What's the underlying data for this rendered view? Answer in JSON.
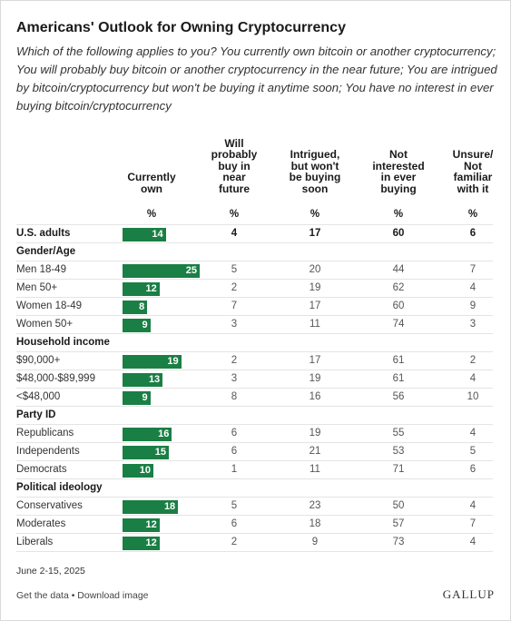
{
  "title": "Americans' Outlook for Owning Cryptocurrency",
  "subtitle": "Which of the following applies to you? You currently own bitcoin or another cryptocurrency; You will probably buy bitcoin or another cryptocurrency in the near future; You are intrigued by bitcoin/cryptocurrency but won't be buying it anytime soon; You have no interest in ever buying bitcoin/cryptocurrency",
  "columns": [
    {
      "lines": [
        "Currently",
        "own"
      ]
    },
    {
      "lines": [
        "Will",
        "probably",
        "buy in",
        "near",
        "future"
      ]
    },
    {
      "lines": [
        "Intrigued,",
        "but won't",
        "be buying",
        "soon"
      ]
    },
    {
      "lines": [
        "Not",
        "interested",
        "in ever",
        "buying"
      ]
    },
    {
      "lines": [
        "Unsure/",
        "Not",
        "familiar",
        "with it"
      ]
    }
  ],
  "pct_symbol": "%",
  "bar_color": "#1a7f45",
  "chart_data": {
    "type": "table",
    "columns": [
      "Currently own",
      "Will probably buy in near future",
      "Intrigued, but won't be buying soon",
      "Not interested in ever buying",
      "Unsure/ Not familiar with it"
    ],
    "unit": "%",
    "rows": [
      {
        "kind": "overall",
        "label": "U.S. adults",
        "values": [
          14,
          4,
          17,
          60,
          6
        ]
      },
      {
        "kind": "group",
        "label": "Gender/Age"
      },
      {
        "kind": "item",
        "label": "Men 18-49",
        "values": [
          25,
          5,
          20,
          44,
          7
        ]
      },
      {
        "kind": "item",
        "label": "Men 50+",
        "values": [
          12,
          2,
          19,
          62,
          4
        ]
      },
      {
        "kind": "item",
        "label": "Women 18-49",
        "values": [
          8,
          7,
          17,
          60,
          9
        ]
      },
      {
        "kind": "item",
        "label": "Women 50+",
        "values": [
          9,
          3,
          11,
          74,
          3
        ]
      },
      {
        "kind": "group",
        "label": "Household income"
      },
      {
        "kind": "item",
        "label": "$90,000+",
        "values": [
          19,
          2,
          17,
          61,
          2
        ]
      },
      {
        "kind": "item",
        "label": "$48,000-$89,999",
        "values": [
          13,
          3,
          19,
          61,
          4
        ]
      },
      {
        "kind": "item",
        "label": "<$48,000",
        "values": [
          9,
          8,
          16,
          56,
          10
        ]
      },
      {
        "kind": "group",
        "label": "Party ID"
      },
      {
        "kind": "item",
        "label": "Republicans",
        "values": [
          16,
          6,
          19,
          55,
          4
        ]
      },
      {
        "kind": "item",
        "label": "Independents",
        "values": [
          15,
          6,
          21,
          53,
          5
        ]
      },
      {
        "kind": "item",
        "label": "Democrats",
        "values": [
          10,
          1,
          11,
          71,
          6
        ]
      },
      {
        "kind": "group",
        "label": "Political ideology"
      },
      {
        "kind": "item",
        "label": "Conservatives",
        "values": [
          18,
          5,
          23,
          50,
          4
        ]
      },
      {
        "kind": "item",
        "label": "Moderates",
        "values": [
          12,
          6,
          18,
          57,
          7
        ]
      },
      {
        "kind": "item",
        "label": "Liberals",
        "values": [
          12,
          2,
          9,
          73,
          4
        ]
      }
    ]
  },
  "footer": {
    "date": "June 2-15, 2025",
    "links": "Get the data • Download image",
    "brand": "GALLUP"
  }
}
